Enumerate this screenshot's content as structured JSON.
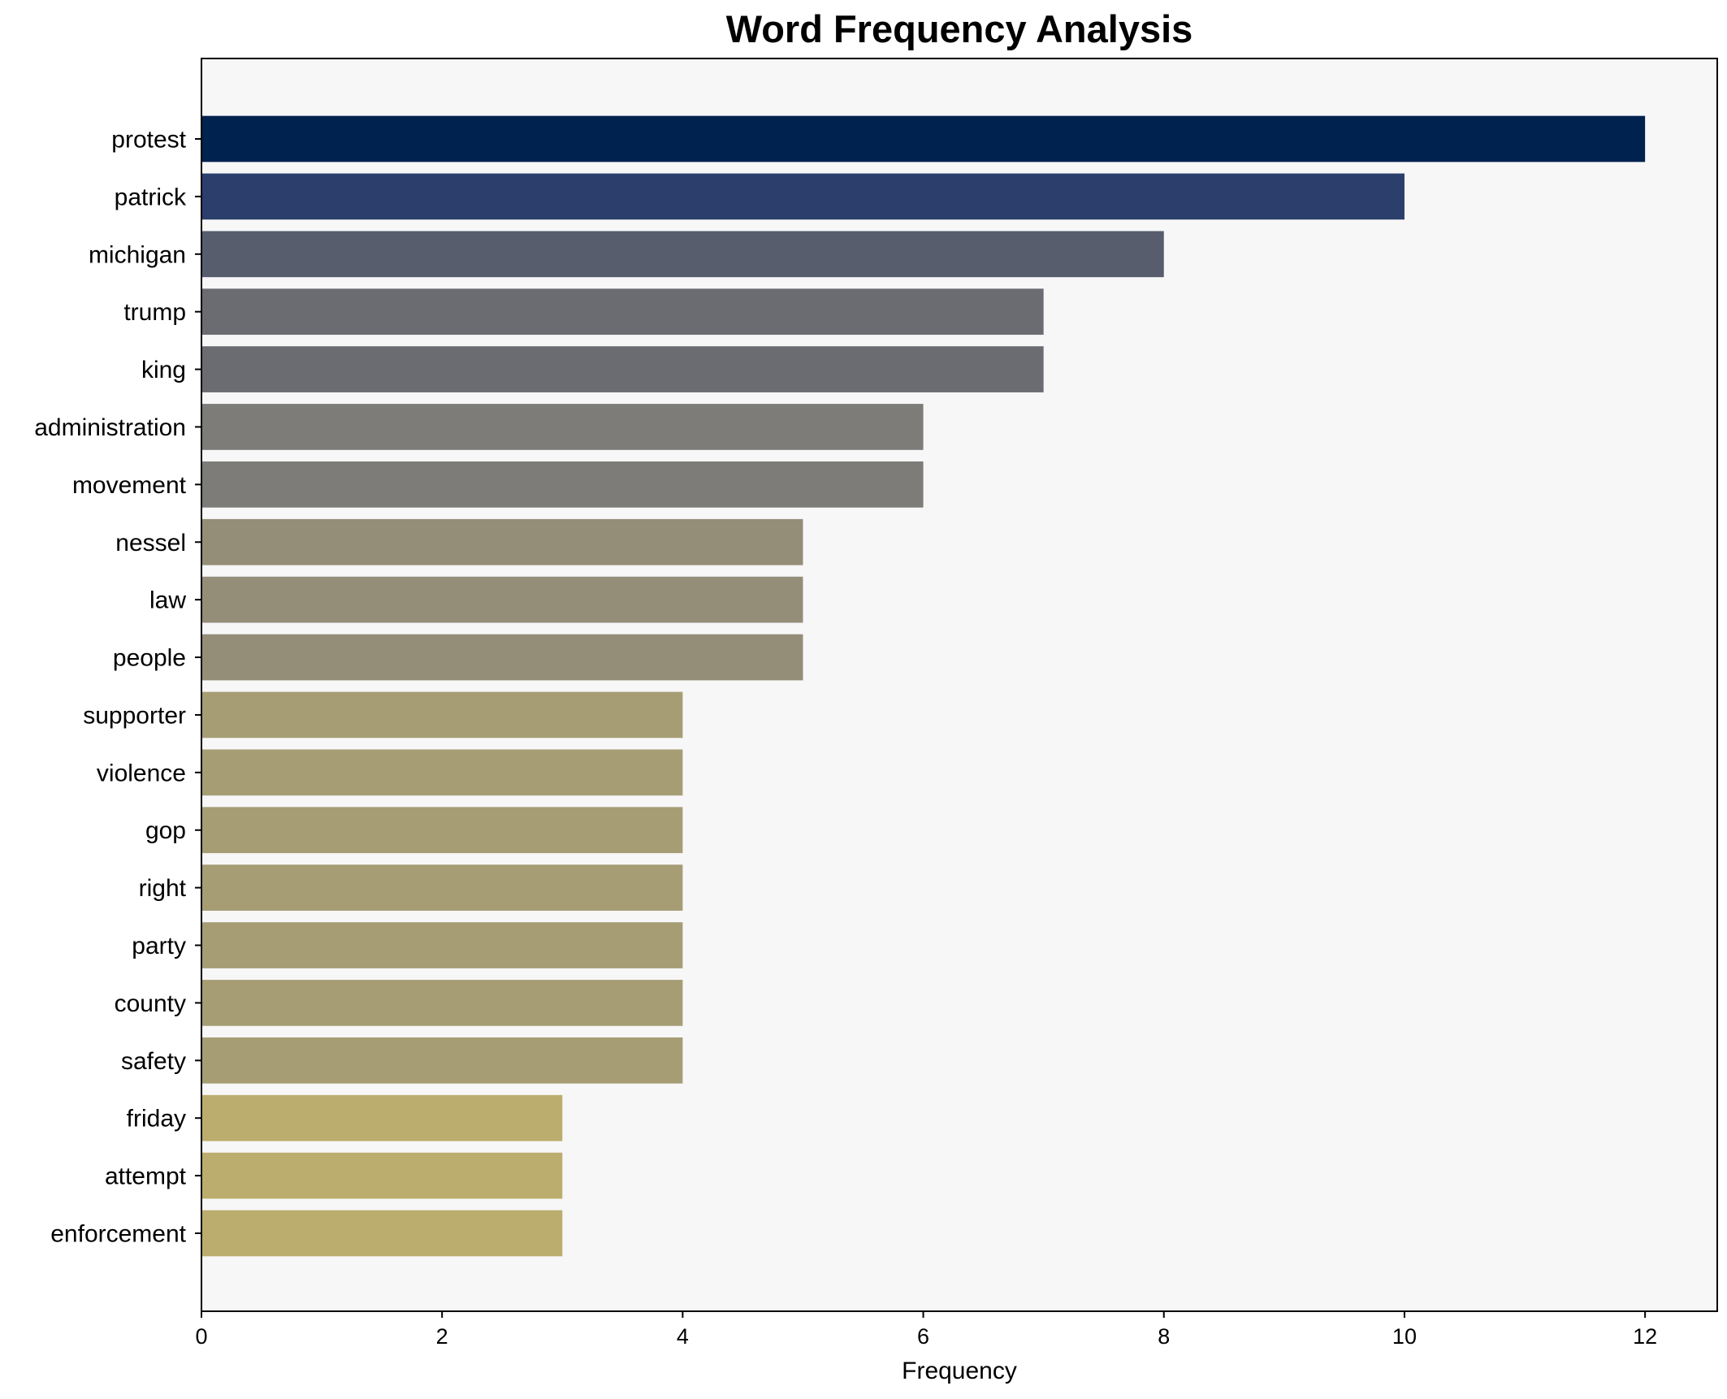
{
  "chart_data": {
    "type": "bar",
    "orientation": "horizontal",
    "title": "Word Frequency Analysis",
    "xlabel": "Frequency",
    "ylabel": "",
    "xlim": [
      0,
      12.6
    ],
    "x_ticks": [
      0,
      2,
      4,
      6,
      8,
      10,
      12
    ],
    "grid": false,
    "legend": "none",
    "background": "#f7f7f8",
    "categories": [
      "protest",
      "patrick",
      "michigan",
      "trump",
      "king",
      "administration",
      "movement",
      "nessel",
      "law",
      "people",
      "supporter",
      "violence",
      "gop",
      "right",
      "party",
      "county",
      "safety",
      "friday",
      "attempt",
      "enforcement"
    ],
    "values": [
      12,
      10,
      8,
      7,
      7,
      6,
      6,
      5,
      5,
      5,
      4,
      4,
      4,
      4,
      4,
      4,
      4,
      3,
      3,
      3
    ],
    "colors": [
      "#00224e",
      "#2b3e6c",
      "#575d6d",
      "#6b6c71",
      "#6b6c71",
      "#7d7c78",
      "#7d7c78",
      "#948d78",
      "#948d78",
      "#948d78",
      "#a69d74",
      "#a69d74",
      "#a69d74",
      "#a69d74",
      "#a69d74",
      "#a69d74",
      "#a69d74",
      "#bbad6e",
      "#bbad6e",
      "#bbad6e"
    ]
  }
}
